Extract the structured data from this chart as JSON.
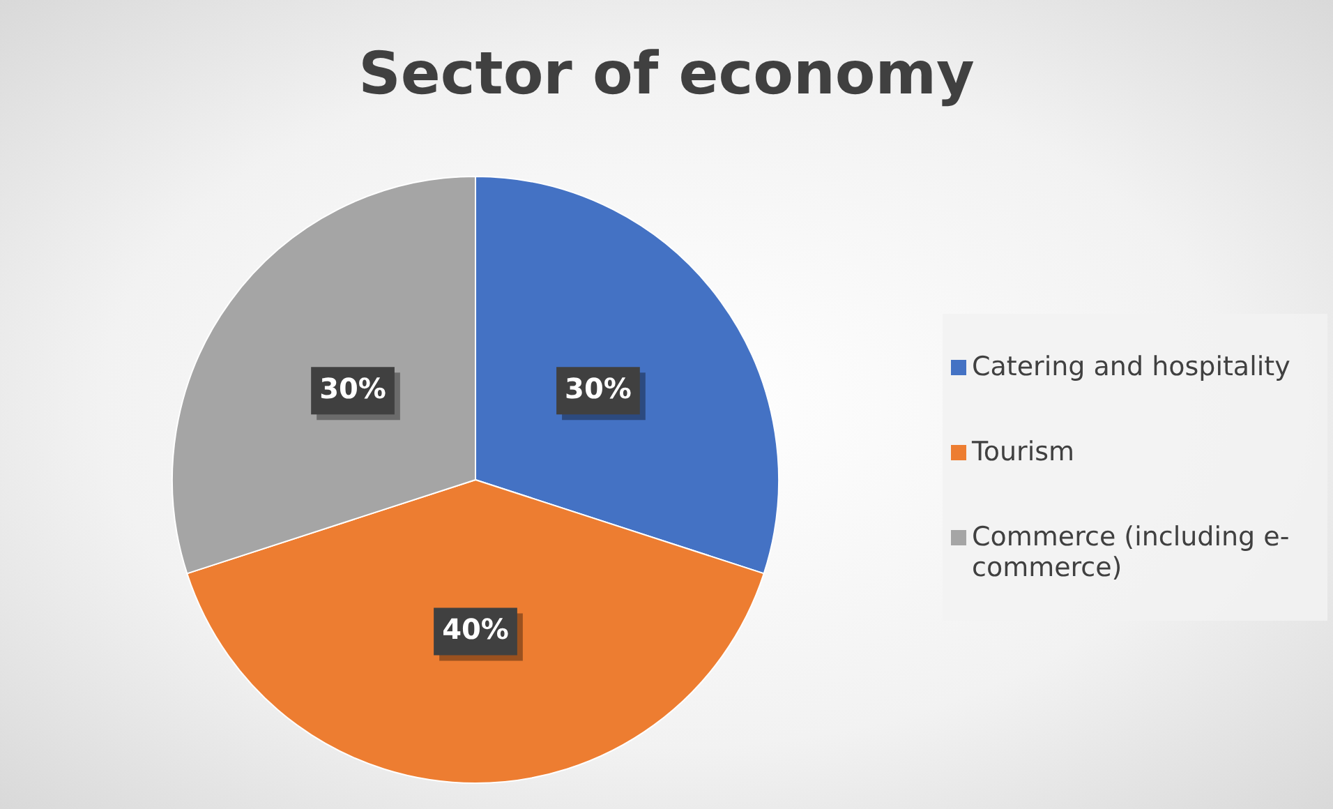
{
  "chart_data": {
    "type": "pie",
    "title": "Sector of economy",
    "categories": [
      "Catering and hospitality",
      "Tourism",
      "Commerce (including e-commerce)"
    ],
    "values": [
      30,
      40,
      30
    ],
    "colors": [
      "#4472c4",
      "#ed7d31",
      "#a5a5a5"
    ],
    "value_labels": [
      "30%",
      "40%",
      "30%"
    ],
    "legend": "right"
  }
}
